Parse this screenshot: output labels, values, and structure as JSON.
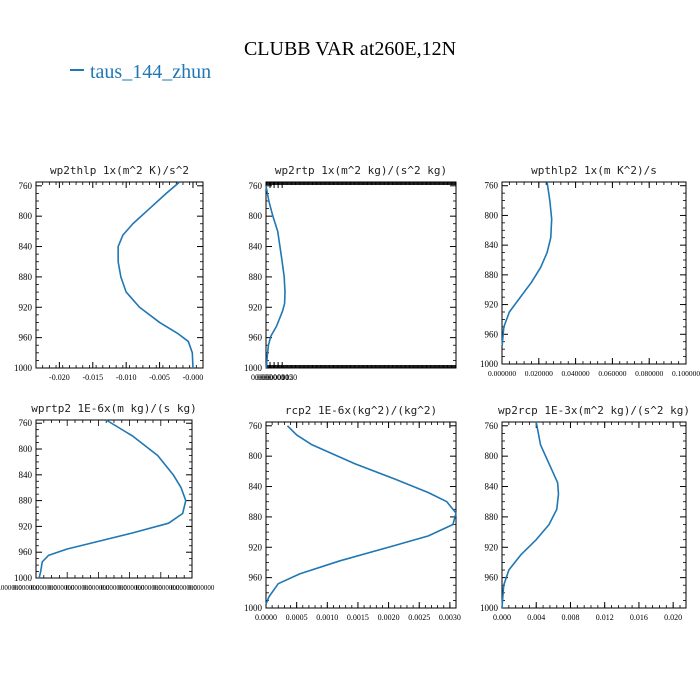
{
  "figure": {
    "title": "CLUBB VAR at260E,12N",
    "legend": [
      {
        "label": "taus_144_zhun",
        "color": "#1f77b4"
      }
    ]
  },
  "chart_data": [
    {
      "type": "line",
      "title": "wp2thlp  1x(m^2 K)/s^2",
      "xlim": [
        -0.0235,
        0.0015
      ],
      "ylim": [
        1000,
        755
      ],
      "xticks": [
        -0.02,
        -0.015,
        -0.01,
        -0.005,
        0.0
      ],
      "xtick_labels": [
        "-0.020",
        "-0.015",
        "-0.010",
        "-0.005",
        "-0.000"
      ],
      "yticks": [
        760,
        800,
        840,
        880,
        920,
        960,
        1000
      ],
      "ytick_labels": [
        "760",
        "800",
        "840",
        "880",
        "920",
        "960",
        "1000"
      ],
      "series": [
        {
          "color": "#1f77b4",
          "x": [
            -0.002,
            -0.004,
            -0.0065,
            -0.009,
            -0.0105,
            -0.0112,
            -0.0112,
            -0.0108,
            -0.01,
            -0.008,
            -0.005,
            -0.0022,
            -0.0007,
            -0.0001,
            0.0
          ],
          "y": [
            755,
            770,
            790,
            810,
            825,
            840,
            860,
            880,
            900,
            920,
            940,
            955,
            965,
            980,
            1000
          ]
        }
      ]
    },
    {
      "type": "line",
      "title": "wp2rtp  1x(m^2 kg)/(s^2 kg)",
      "xlim": [
        0.0,
        0.000235
      ],
      "ylim": [
        1000,
        755
      ],
      "xticks": [
        0.0,
        5e-06,
        1e-05,
        1.5e-05,
        2e-05
      ],
      "xtick_labels": [
        "0.000000",
        "0.000005",
        "0.000010",
        "0.000015",
        "0.000020"
      ],
      "yticks": [
        760,
        800,
        840,
        880,
        920,
        960,
        1000
      ],
      "ytick_labels": [
        "760",
        "800",
        "840",
        "880",
        "920",
        "960",
        "1000"
      ],
      "series": [
        {
          "color": "#1f77b4",
          "x": [
            0.0,
            3.5e-06,
            8.5e-06,
            1.45e-05,
            2e-05,
            2.25e-05,
            2.35e-05,
            2.3e-05,
            2.05e-05,
            1.3e-05,
            6e-06,
            3e-06,
            1.5e-06,
            5e-07
          ],
          "y": [
            760,
            780,
            800,
            820,
            860,
            880,
            900,
            915,
            925,
            945,
            958,
            970,
            985,
            1000
          ]
        }
      ]
    },
    {
      "type": "line",
      "title": "wpthlp2  1x(m K^2)/s",
      "xlim": [
        0.0,
        0.1
      ],
      "ylim": [
        1000,
        755
      ],
      "xticks": [
        0.0,
        0.02,
        0.04,
        0.06,
        0.08,
        0.1
      ],
      "xtick_labels": [
        "0.000000",
        "0.020000",
        "0.040000",
        "0.060000",
        "0.080000",
        "0.100000"
      ],
      "yticks": [
        760,
        800,
        840,
        880,
        920,
        960,
        1000
      ],
      "ytick_labels": [
        "760",
        "800",
        "840",
        "880",
        "920",
        "960",
        "1000"
      ],
      "series": [
        {
          "color": "#1f77b4",
          "x": [
            0.0245,
            0.026,
            0.027,
            0.0265,
            0.0245,
            0.021,
            0.016,
            0.01,
            0.004,
            0.001,
            0.0001
          ],
          "y": [
            755,
            780,
            805,
            830,
            850,
            870,
            890,
            910,
            930,
            950,
            975
          ]
        }
      ]
    },
    {
      "type": "line",
      "title": "wprtp2  1E-6x(m kg)/(s kg)",
      "ylim": [
        1000,
        755
      ],
      "yticks": [
        760,
        800,
        840,
        880,
        920,
        960,
        1000
      ],
      "ytick_labels": [
        "760",
        "800",
        "840",
        "880",
        "920",
        "960",
        "1000"
      ],
      "xtick_labels": [
        "0.000000",
        "0.000000",
        "0.000000",
        "0.000000",
        "0.000000",
        "0.000000",
        "0.000000",
        "0.000000",
        "0.000000",
        "0.000000",
        "0.000000",
        "0.000000"
      ],
      "series": [
        {
          "color": "#1f77b4",
          "x": [
            0.45,
            0.62,
            0.78,
            0.88,
            0.93,
            0.96,
            0.94,
            0.85,
            0.62,
            0.37,
            0.2,
            0.08,
            0.04,
            0.03,
            0.02
          ],
          "y": [
            755,
            780,
            810,
            840,
            860,
            880,
            900,
            915,
            930,
            945,
            955,
            965,
            975,
            990,
            1000
          ]
        }
      ]
    },
    {
      "type": "line",
      "title": "rcp2  1E-6x(kg^2)/(kg^2)",
      "xlim": [
        0.0,
        0.0031
      ],
      "ylim": [
        1000,
        755
      ],
      "xticks": [
        0.0,
        0.0005,
        0.001,
        0.0015,
        0.002,
        0.0025,
        0.003
      ],
      "xtick_labels": [
        "0.0000",
        "0.0005",
        "0.0010",
        "0.0015",
        "0.0020",
        "0.0025",
        "0.0030"
      ],
      "yticks": [
        760,
        800,
        840,
        880,
        920,
        960,
        1000
      ],
      "ytick_labels": [
        "760",
        "800",
        "840",
        "880",
        "920",
        "960",
        "1000"
      ],
      "series": [
        {
          "color": "#1f77b4",
          "x": [
            0.00035,
            0.0005,
            0.00075,
            0.00145,
            0.0021,
            0.00265,
            0.00295,
            0.0031,
            0.00305,
            0.00265,
            0.002,
            0.0012,
            0.00055,
            0.0002,
            5e-05,
            0.0
          ],
          "y": [
            760,
            772,
            785,
            810,
            830,
            848,
            860,
            875,
            890,
            905,
            920,
            938,
            955,
            968,
            985,
            995
          ]
        }
      ]
    },
    {
      "type": "line",
      "title": "wp2rcp  1E-3x(m^2 kg)/(s^2 kg)",
      "xlim": [
        0.0,
        0.0215
      ],
      "ylim": [
        1000,
        755
      ],
      "xticks": [
        0.0,
        0.004,
        0.008,
        0.012,
        0.016,
        0.02
      ],
      "xtick_labels": [
        "0.000",
        "0.004",
        "0.008",
        "0.012",
        "0.016",
        "0.020"
      ],
      "yticks": [
        760,
        800,
        840,
        880,
        920,
        960,
        1000
      ],
      "ytick_labels": [
        "760",
        "800",
        "840",
        "880",
        "920",
        "960",
        "1000"
      ],
      "series": [
        {
          "color": "#1f77b4",
          "x": [
            0.004,
            0.0045,
            0.0057,
            0.0065,
            0.0066,
            0.0064,
            0.0055,
            0.004,
            0.0022,
            0.0008,
            0.0002,
            0.0
          ],
          "y": [
            755,
            785,
            815,
            835,
            850,
            870,
            890,
            910,
            930,
            950,
            970,
            1000
          ]
        }
      ]
    }
  ]
}
